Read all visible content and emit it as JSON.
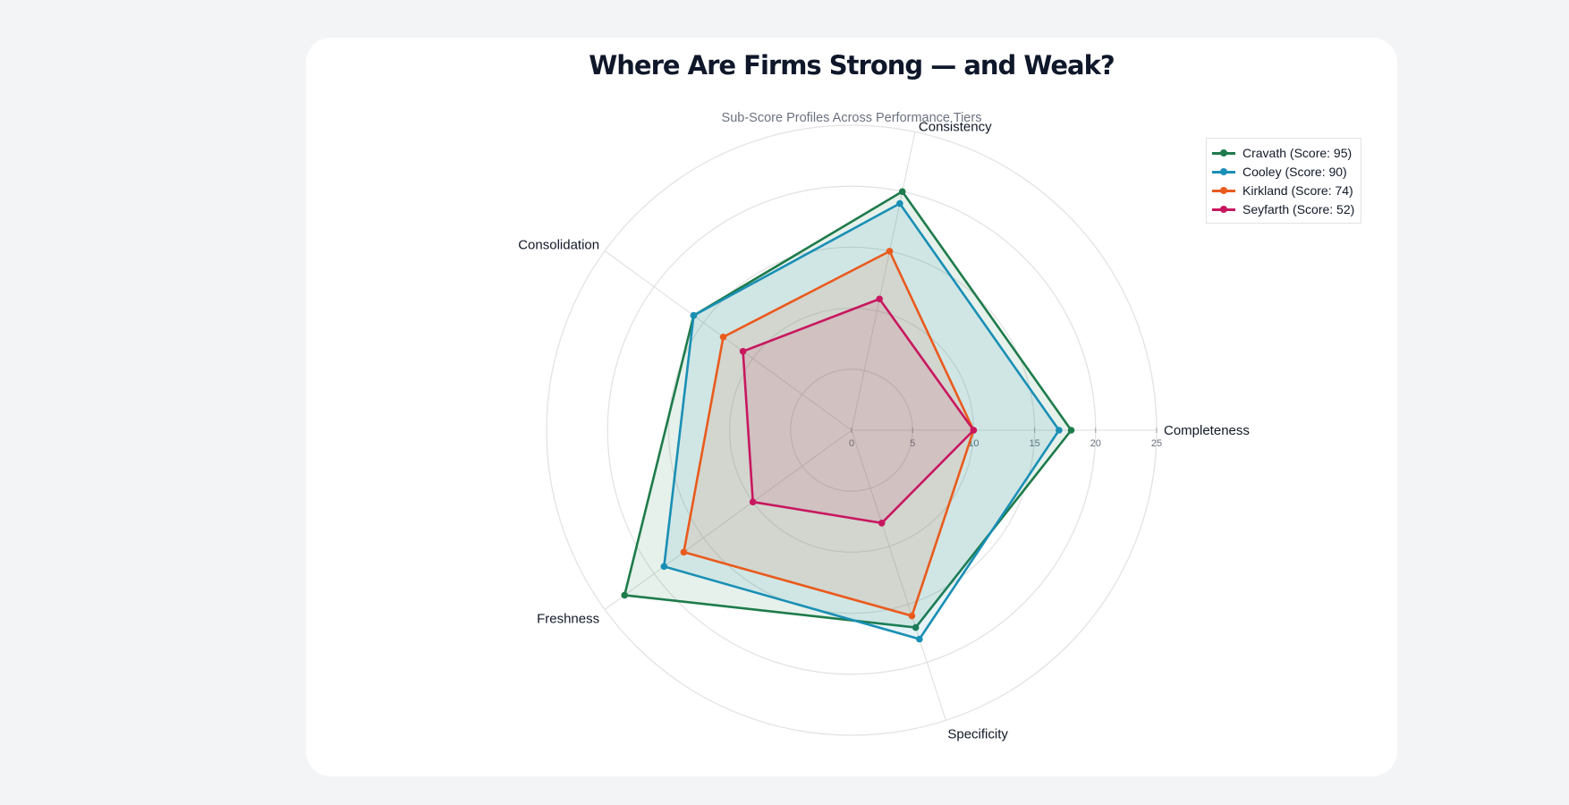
{
  "chart_data": {
    "type": "radar",
    "title": "Where Are Firms Strong — and Weak?",
    "subtitle": "Sub-Score Profiles Across Performance Tiers",
    "axes": [
      "Completeness",
      "Consistency",
      "Consolidation",
      "Freshness",
      "Specificity"
    ],
    "radial_range": [
      0,
      25
    ],
    "radial_ticks": [
      0,
      5,
      10,
      15,
      20,
      25
    ],
    "grid": true,
    "legend_position": "top-right",
    "series": [
      {
        "name": "Cravath (Score: 95)",
        "color": "#1e7b4b",
        "values": [
          18,
          20,
          16,
          23,
          17
        ]
      },
      {
        "name": "Cooley (Score: 90)",
        "color": "#1a8fb5",
        "values": [
          17,
          19,
          16,
          19,
          18
        ]
      },
      {
        "name": "Kirkland (Score: 74)",
        "color": "#ea5a1d",
        "values": [
          10,
          15,
          13,
          17,
          16
        ]
      },
      {
        "name": "Seyfarth (Score: 52)",
        "color": "#c8175f",
        "values": [
          10,
          11,
          11,
          10,
          8
        ]
      }
    ]
  }
}
